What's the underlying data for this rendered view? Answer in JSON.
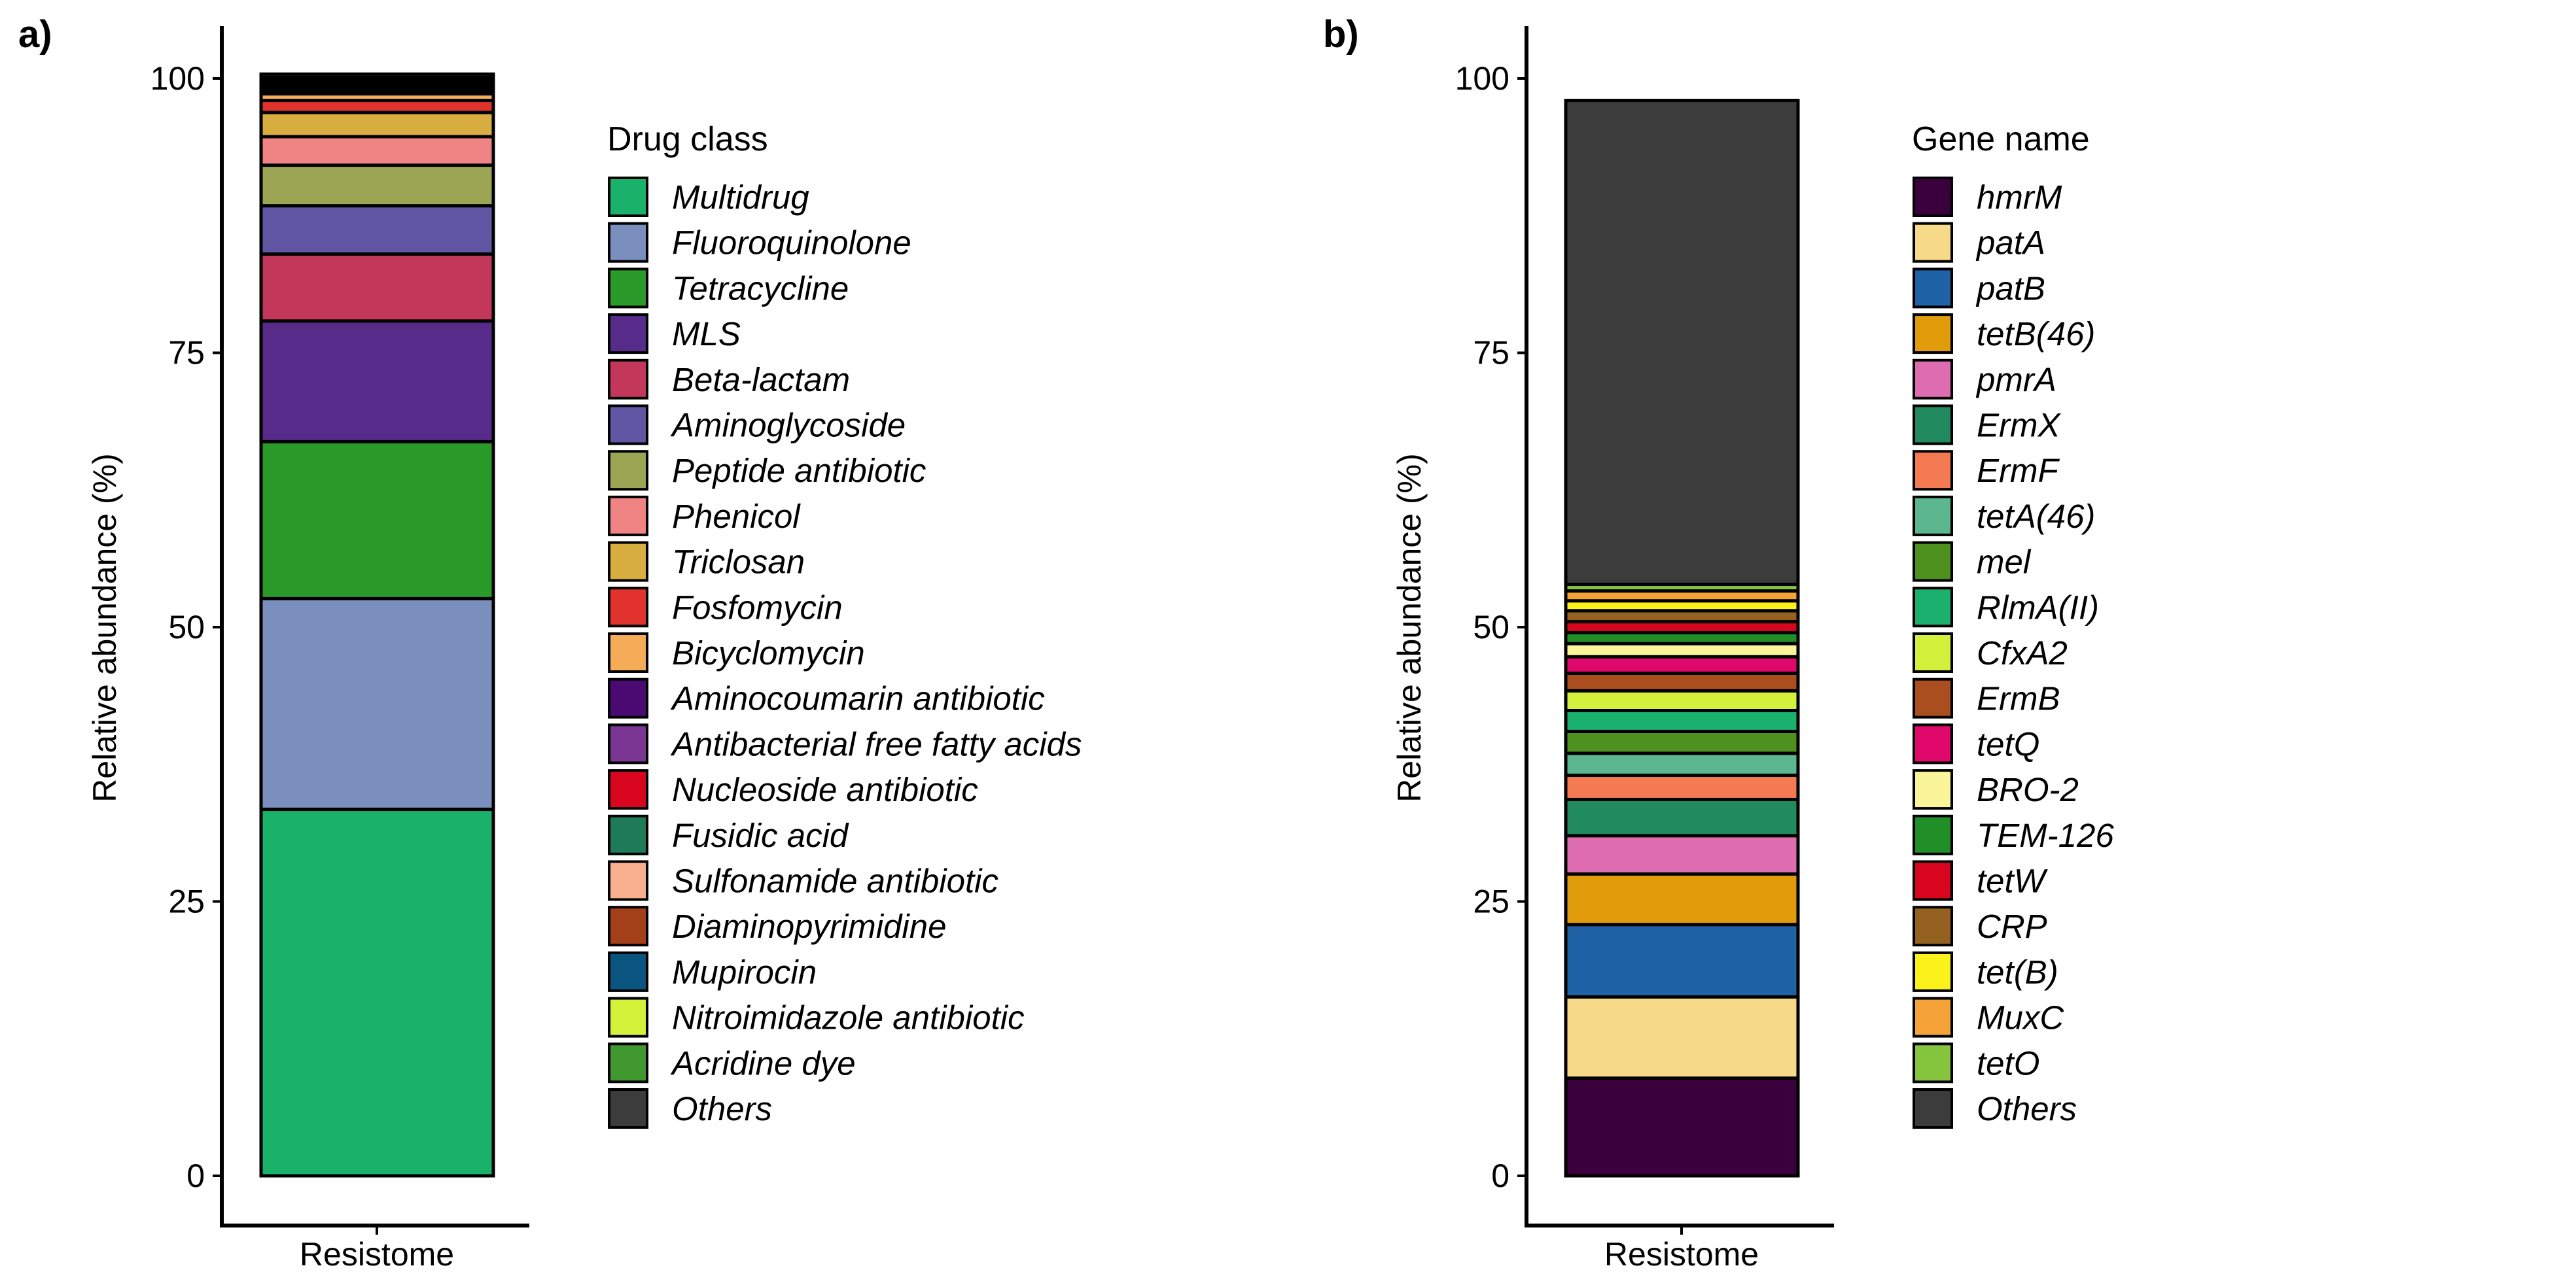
{
  "chart_data": [
    {
      "type": "bar",
      "stacked": true,
      "panel_label": "a)",
      "categories": [
        "Resistome"
      ],
      "xlabel": "",
      "ylabel": "Relative abundance (%)",
      "ylim": [
        0,
        100
      ],
      "yticks": [
        0,
        25,
        50,
        75,
        100
      ],
      "grid": false,
      "legend_title": "Drug class",
      "legend_position": "right",
      "series": [
        {
          "name": "Multidrug",
          "values": [
            33.4
          ],
          "color": "#1ab26b"
        },
        {
          "name": "Fluoroquinolone",
          "values": [
            19.2
          ],
          "color": "#7b8fbf"
        },
        {
          "name": "Tetracycline",
          "values": [
            14.3
          ],
          "color": "#2a9a2a"
        },
        {
          "name": "MLS",
          "values": [
            11.0
          ],
          "color": "#562b8a"
        },
        {
          "name": "Beta-lactam",
          "values": [
            6.1
          ],
          "color": "#c3385a"
        },
        {
          "name": "Aminoglycoside",
          "values": [
            4.4
          ],
          "color": "#6156a3"
        },
        {
          "name": "Peptide antibiotic",
          "values": [
            3.7
          ],
          "color": "#9ca553"
        },
        {
          "name": "Phenicol",
          "values": [
            2.6
          ],
          "color": "#f08484"
        },
        {
          "name": "Triclosan",
          "values": [
            2.2
          ],
          "color": "#d9ae40"
        },
        {
          "name": "Fosfomycin",
          "values": [
            1.1
          ],
          "color": "#e1322d"
        },
        {
          "name": "Bicyclomycin",
          "values": [
            0.6
          ],
          "color": "#f5ac59"
        },
        {
          "name": "Aminocoumarin antibiotic",
          "values": [
            0.3
          ],
          "color": "#4a0a72"
        },
        {
          "name": "Antibacterial free fatty acids",
          "values": [
            0.3
          ],
          "color": "#7b3592"
        },
        {
          "name": "Nucleoside antibiotic",
          "values": [
            0.25
          ],
          "color": "#d7061e"
        },
        {
          "name": "Fusidic acid",
          "values": [
            0.2
          ],
          "color": "#1f7a59"
        },
        {
          "name": "Sulfonamide antibiotic",
          "values": [
            0.15
          ],
          "color": "#f8b08f"
        },
        {
          "name": "Diaminopyrimidine",
          "values": [
            0.1
          ],
          "color": "#a3401a"
        },
        {
          "name": "Mupirocin",
          "values": [
            0.08
          ],
          "color": "#0a557f"
        },
        {
          "name": "Nitroimidazole antibiotic",
          "values": [
            0.06
          ],
          "color": "#d5f23b"
        },
        {
          "name": "Acridine dye",
          "values": [
            0.05
          ],
          "color": "#40982e"
        },
        {
          "name": "Others",
          "values": [
            0.31
          ],
          "color": "#3c3c3c"
        }
      ]
    },
    {
      "type": "bar",
      "stacked": true,
      "panel_label": "b)",
      "categories": [
        "Resistome"
      ],
      "xlabel": "",
      "ylabel": "Relative abundance (%)",
      "ylim": [
        0,
        100
      ],
      "yticks": [
        0,
        25,
        50,
        75,
        100
      ],
      "grid": false,
      "legend_title": "Gene name",
      "legend_position": "right",
      "series": [
        {
          "name": "hmrM",
          "values": [
            8.9
          ],
          "color": "#3a003e"
        },
        {
          "name": "patA",
          "values": [
            7.4
          ],
          "color": "#f7d98a"
        },
        {
          "name": "patB",
          "values": [
            6.6
          ],
          "color": "#1f62a6"
        },
        {
          "name": "tetB(46)",
          "values": [
            4.6
          ],
          "color": "#e09c0a"
        },
        {
          "name": "pmrA",
          "values": [
            3.5
          ],
          "color": "#de6cb0"
        },
        {
          "name": "ErmX",
          "values": [
            3.3
          ],
          "color": "#218a5f"
        },
        {
          "name": "ErmF",
          "values": [
            2.2
          ],
          "color": "#f47a52"
        },
        {
          "name": "tetA(46)",
          "values": [
            2.0
          ],
          "color": "#5cb68e"
        },
        {
          "name": "mel",
          "values": [
            2.0
          ],
          "color": "#4f911f"
        },
        {
          "name": "RlmA(II)",
          "values": [
            1.9
          ],
          "color": "#1bb06d"
        },
        {
          "name": "CfxA2",
          "values": [
            1.8
          ],
          "color": "#d2f03c"
        },
        {
          "name": "ErmB",
          "values": [
            1.6
          ],
          "color": "#aa4e1f"
        },
        {
          "name": "tetQ",
          "values": [
            1.5
          ],
          "color": "#e0086a"
        },
        {
          "name": "BRO-2",
          "values": [
            1.2
          ],
          "color": "#fbf59a"
        },
        {
          "name": "TEM-126",
          "values": [
            1.0
          ],
          "color": "#218f27"
        },
        {
          "name": "tetW",
          "values": [
            1.0
          ],
          "color": "#d7061e"
        },
        {
          "name": "CRP",
          "values": [
            1.0
          ],
          "color": "#946120"
        },
        {
          "name": "tet(B)",
          "values": [
            0.9
          ],
          "color": "#fbf21c"
        },
        {
          "name": "MuxC",
          "values": [
            0.9
          ],
          "color": "#f5a239"
        },
        {
          "name": "tetO",
          "values": [
            0.6
          ],
          "color": "#86c63e"
        },
        {
          "name": "Others",
          "values": [
            44.1
          ],
          "color": "#3c3c3c"
        }
      ]
    }
  ]
}
